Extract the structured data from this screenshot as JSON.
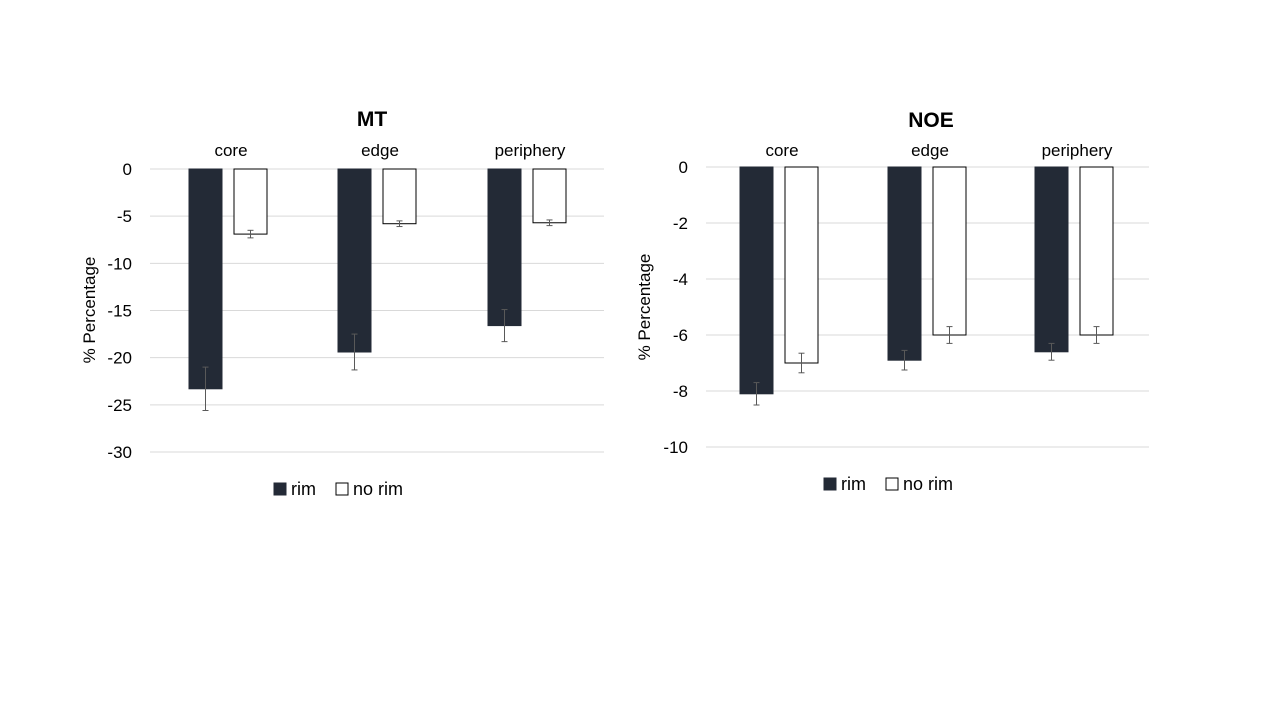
{
  "colors": {
    "rim": "#232a36",
    "no_rim": "#ffffff",
    "grid": "#d9d9d9",
    "error_bar": "#595959"
  },
  "chart_data": [
    {
      "type": "bar",
      "title": "MT",
      "ylabel": "% Percentage",
      "xlabel": "",
      "categories": [
        "core",
        "edge",
        "periphery"
      ],
      "ylim": [
        -30,
        0
      ],
      "yticks": [
        0,
        -5,
        -10,
        -15,
        -20,
        -25,
        -30
      ],
      "grid": true,
      "legend_position": "bottom",
      "series": [
        {
          "name": "rim",
          "color_key": "rim",
          "values": [
            -23.3,
            -19.4,
            -16.6
          ],
          "errors": [
            2.3,
            1.9,
            1.7
          ]
        },
        {
          "name": "no rim",
          "color_key": "no_rim",
          "values": [
            -6.9,
            -5.8,
            -5.7
          ],
          "errors": [
            0.4,
            0.3,
            0.3
          ]
        }
      ]
    },
    {
      "type": "bar",
      "title": "NOE",
      "ylabel": "% Percentage",
      "xlabel": "",
      "categories": [
        "core",
        "edge",
        "periphery"
      ],
      "ylim": [
        -10,
        0
      ],
      "yticks": [
        0,
        -2,
        -4,
        -6,
        -8,
        -10
      ],
      "grid": true,
      "legend_position": "bottom",
      "series": [
        {
          "name": "rim",
          "color_key": "rim",
          "values": [
            -8.1,
            -6.9,
            -6.6
          ],
          "errors": [
            0.4,
            0.35,
            0.3
          ]
        },
        {
          "name": "no rim",
          "color_key": "no_rim",
          "values": [
            -7.0,
            -6.0,
            -6.0
          ],
          "errors": [
            0.35,
            0.3,
            0.3
          ]
        }
      ]
    }
  ]
}
